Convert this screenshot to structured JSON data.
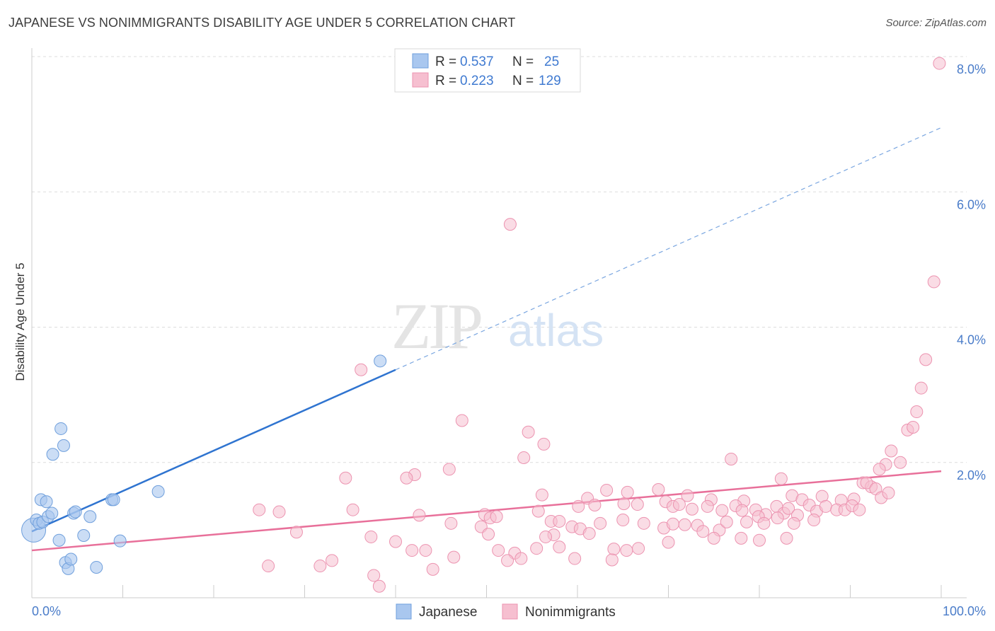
{
  "title": "JAPANESE VS NONIMMIGRANTS DISABILITY AGE UNDER 5 CORRELATION CHART",
  "source": "Source: ZipAtlas.com",
  "watermark": {
    "zip": "ZIP",
    "atlas": "atlas"
  },
  "colors": {
    "japanese_fill": "#a9c7ef",
    "japanese_stroke": "#6f9fdc",
    "japanese_line": "#2f74d0",
    "nonimm_fill": "#f6bfd0",
    "nonimm_stroke": "#ec93b0",
    "nonimm_line": "#e8709a",
    "grid": "#dddddd",
    "tick_text": "#4a7cc9"
  },
  "legend": {
    "rows": [
      {
        "r_label": "R =",
        "r_value": "0.537",
        "n_label": "N =",
        "n_value": "25"
      },
      {
        "r_label": "R =",
        "r_value": "0.223",
        "n_label": "N =",
        "n_value": "129"
      }
    ]
  },
  "chart_data": {
    "type": "scatter",
    "title": "JAPANESE VS NONIMMIGRANTS DISABILITY AGE UNDER 5 CORRELATION CHART",
    "xlabel": "",
    "ylabel": "Disability Age Under 5",
    "xlim": [
      0,
      100
    ],
    "ylim": [
      0,
      8.0
    ],
    "x_tick_labels": [
      "0.0%",
      "100.0%"
    ],
    "y_ticks": [
      2.0,
      4.0,
      6.0,
      8.0
    ],
    "y_tick_labels": [
      "2.0%",
      "4.0%",
      "6.0%",
      "8.0%"
    ],
    "grid": true,
    "legend_position": "top-center",
    "series": [
      {
        "name": "Japanese",
        "r": 0.537,
        "n": 25,
        "trend": {
          "x0": 0,
          "y0": 0.98,
          "x1": 40,
          "y1": 3.37,
          "dash_x1": 100,
          "dash_y1": 6.95
        },
        "points": [
          [
            0.2,
            1.0
          ],
          [
            0.5,
            1.15
          ],
          [
            0.8,
            1.1
          ],
          [
            1.2,
            1.12
          ],
          [
            1.0,
            1.45
          ],
          [
            1.6,
            1.42
          ],
          [
            1.8,
            1.2
          ],
          [
            2.2,
            1.25
          ],
          [
            2.3,
            2.12
          ],
          [
            3.2,
            2.5
          ],
          [
            3.5,
            2.25
          ],
          [
            3.0,
            0.85
          ],
          [
            3.7,
            0.52
          ],
          [
            4.0,
            0.43
          ],
          [
            4.3,
            0.57
          ],
          [
            4.6,
            1.25
          ],
          [
            4.8,
            1.27
          ],
          [
            5.7,
            0.92
          ],
          [
            6.4,
            1.2
          ],
          [
            7.1,
            0.45
          ],
          [
            8.8,
            1.45
          ],
          [
            9.0,
            1.45
          ],
          [
            9.7,
            0.84
          ],
          [
            13.9,
            1.57
          ],
          [
            38.3,
            3.5
          ]
        ]
      },
      {
        "name": "Nonimmigrants",
        "r": 0.223,
        "n": 129,
        "trend": {
          "x0": 0,
          "y0": 0.7,
          "x1": 100,
          "y1": 1.87
        },
        "points": [
          [
            99.8,
            7.9
          ],
          [
            52.6,
            5.52
          ],
          [
            99.2,
            4.67
          ],
          [
            98.3,
            3.52
          ],
          [
            36.2,
            3.37
          ],
          [
            97.8,
            3.1
          ],
          [
            97.3,
            2.75
          ],
          [
            47.3,
            2.62
          ],
          [
            54.1,
            2.07
          ],
          [
            54.6,
            2.45
          ],
          [
            76.9,
            2.05
          ],
          [
            56.3,
            2.27
          ],
          [
            95.5,
            2.0
          ],
          [
            45.9,
            1.9
          ],
          [
            94.5,
            2.17
          ],
          [
            96.3,
            2.48
          ],
          [
            96.9,
            2.52
          ],
          [
            93.9,
            1.97
          ],
          [
            93.2,
            1.9
          ],
          [
            42.1,
            1.82
          ],
          [
            41.2,
            1.77
          ],
          [
            34.5,
            1.77
          ],
          [
            82.4,
            1.76
          ],
          [
            63.2,
            1.59
          ],
          [
            65.5,
            1.56
          ],
          [
            68.9,
            1.6
          ],
          [
            72.1,
            1.51
          ],
          [
            74.7,
            1.45
          ],
          [
            78.3,
            1.43
          ],
          [
            83.6,
            1.51
          ],
          [
            84.7,
            1.45
          ],
          [
            86.9,
            1.5
          ],
          [
            89.0,
            1.44
          ],
          [
            90.4,
            1.46
          ],
          [
            91.4,
            1.7
          ],
          [
            92.3,
            1.64
          ],
          [
            91.8,
            1.7
          ],
          [
            92.8,
            1.61
          ],
          [
            93.4,
            1.48
          ],
          [
            94.2,
            1.55
          ],
          [
            56.1,
            1.52
          ],
          [
            60.1,
            1.35
          ],
          [
            61.1,
            1.47
          ],
          [
            61.9,
            1.37
          ],
          [
            65.1,
            1.39
          ],
          [
            66.6,
            1.38
          ],
          [
            69.7,
            1.42
          ],
          [
            70.5,
            1.35
          ],
          [
            71.2,
            1.38
          ],
          [
            72.6,
            1.31
          ],
          [
            74.3,
            1.35
          ],
          [
            75.9,
            1.29
          ],
          [
            77.4,
            1.36
          ],
          [
            78.1,
            1.29
          ],
          [
            79.6,
            1.3
          ],
          [
            80.7,
            1.23
          ],
          [
            81.9,
            1.35
          ],
          [
            82.7,
            1.25
          ],
          [
            83.2,
            1.32
          ],
          [
            84.2,
            1.22
          ],
          [
            85.5,
            1.37
          ],
          [
            86.3,
            1.28
          ],
          [
            87.3,
            1.35
          ],
          [
            88.5,
            1.3
          ],
          [
            89.4,
            1.3
          ],
          [
            90.2,
            1.36
          ],
          [
            91.0,
            1.3
          ],
          [
            25.0,
            1.3
          ],
          [
            27.2,
            1.27
          ],
          [
            35.3,
            1.3
          ],
          [
            42.6,
            1.22
          ],
          [
            49.8,
            1.23
          ],
          [
            50.4,
            1.18
          ],
          [
            51.1,
            1.2
          ],
          [
            55.7,
            1.28
          ],
          [
            57.1,
            1.13
          ],
          [
            58.0,
            1.13
          ],
          [
            59.4,
            1.05
          ],
          [
            62.5,
            1.1
          ],
          [
            65.0,
            1.15
          ],
          [
            67.3,
            1.1
          ],
          [
            69.5,
            1.03
          ],
          [
            70.5,
            1.09
          ],
          [
            71.8,
            1.08
          ],
          [
            73.2,
            1.07
          ],
          [
            73.8,
            0.98
          ],
          [
            75.6,
            1.0
          ],
          [
            76.4,
            1.12
          ],
          [
            78.6,
            1.12
          ],
          [
            79.9,
            1.2
          ],
          [
            82.0,
            1.18
          ],
          [
            83.8,
            1.1
          ],
          [
            86.0,
            1.15
          ],
          [
            80.5,
            1.1
          ],
          [
            46.1,
            1.1
          ],
          [
            49.4,
            1.05
          ],
          [
            60.3,
            1.02
          ],
          [
            61.3,
            0.95
          ],
          [
            57.4,
            0.93
          ],
          [
            56.5,
            0.9
          ],
          [
            29.1,
            0.97
          ],
          [
            37.3,
            0.9
          ],
          [
            50.2,
            0.94
          ],
          [
            40.0,
            0.83
          ],
          [
            70.0,
            0.82
          ],
          [
            75.0,
            0.88
          ],
          [
            78.0,
            0.88
          ],
          [
            80.0,
            0.85
          ],
          [
            83.0,
            0.88
          ],
          [
            55.5,
            0.73
          ],
          [
            58.0,
            0.75
          ],
          [
            64.0,
            0.72
          ],
          [
            65.4,
            0.7
          ],
          [
            66.7,
            0.73
          ],
          [
            41.8,
            0.7
          ],
          [
            43.3,
            0.7
          ],
          [
            51.3,
            0.7
          ],
          [
            53.1,
            0.66
          ],
          [
            46.4,
            0.6
          ],
          [
            59.7,
            0.58
          ],
          [
            52.3,
            0.55
          ],
          [
            53.8,
            0.58
          ],
          [
            63.8,
            0.56
          ],
          [
            33.0,
            0.55
          ],
          [
            26.0,
            0.47
          ],
          [
            44.1,
            0.42
          ],
          [
            37.6,
            0.33
          ],
          [
            31.7,
            0.47
          ],
          [
            38.2,
            0.17
          ]
        ]
      }
    ]
  },
  "bottom_legend": [
    {
      "label": "Japanese"
    },
    {
      "label": "Nonimmigrants"
    }
  ]
}
